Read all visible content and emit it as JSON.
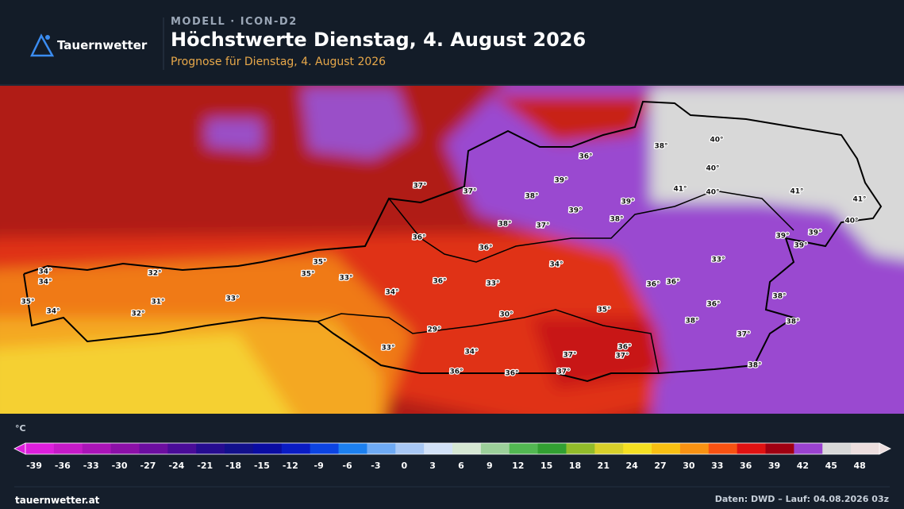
{
  "header": {
    "brand": "Tauernwetter",
    "model": "MODELL · ICON-D2",
    "title": "Höchstwerte Dienstag, 4. August 2026",
    "subtitle": "Prognose für Dienstag, 4. August 2026"
  },
  "map": {
    "labels": [
      "34°",
      "34°",
      "35°",
      "34°",
      "32°",
      "31°",
      "32°",
      "33°",
      "35°",
      "35°",
      "33°",
      "34°",
      "36°",
      "33°",
      "30°",
      "29°",
      "33°",
      "34°",
      "36°",
      "36°",
      "37°",
      "37°",
      "36°",
      "37°",
      "35°",
      "36°",
      "36°",
      "36°",
      "38°",
      "37°",
      "38°",
      "38°",
      "38°",
      "33°",
      "34°",
      "36°",
      "36°",
      "37°",
      "37°",
      "38°",
      "39°",
      "36°",
      "38°",
      "37°",
      "39°",
      "38°",
      "39°",
      "38°",
      "40°",
      "40°",
      "41°",
      "40°",
      "41°",
      "41°",
      "40°",
      "39°",
      "39°",
      "39°"
    ]
  },
  "legend": {
    "unit": "°C",
    "ticks": [
      "-39",
      "-36",
      "-33",
      "-30",
      "-27",
      "-24",
      "-21",
      "-18",
      "-15",
      "-12",
      "-9",
      "-6",
      "-3",
      "0",
      "3",
      "6",
      "9",
      "12",
      "15",
      "18",
      "21",
      "24",
      "27",
      "30",
      "33",
      "36",
      "39",
      "42",
      "45",
      "48"
    ],
    "colors": [
      "#dd1fdd",
      "#c51ac8",
      "#aa14b8",
      "#8c10a8",
      "#6c0ea0",
      "#4a0c98",
      "#260c90",
      "#12108c",
      "#0a0ca2",
      "#0a1cc4",
      "#0c44e2",
      "#1c80f0",
      "#6eaaf4",
      "#a8c8f5",
      "#d2e2f8",
      "#d6e8d4",
      "#9cd09a",
      "#52b852",
      "#32a032",
      "#92bc2a",
      "#d8d02a",
      "#f5e022",
      "#f8c012",
      "#f89212",
      "#f85212",
      "#e01212",
      "#a00012",
      "#9a42d0",
      "#d8d8d8",
      "#ecdede"
    ]
  },
  "footer": {
    "site": "tauernwetter.at",
    "source": "Daten: DWD – Lauf: 04.08.2026 03z"
  }
}
